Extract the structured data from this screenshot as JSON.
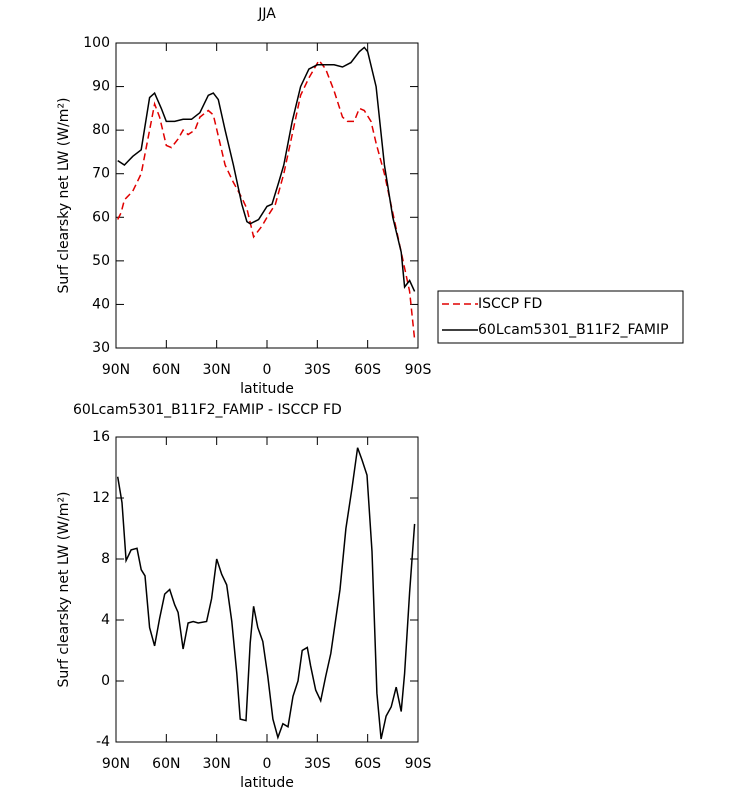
{
  "chart_data": [
    {
      "type": "line",
      "title": "JJA",
      "xlabel": "latitude",
      "ylabel": "Surf clearsky net LW (W/m²)",
      "xlim": [
        90,
        -90
      ],
      "xticks": [
        {
          "value": 90,
          "label": "90N"
        },
        {
          "value": 60,
          "label": "60N"
        },
        {
          "value": 30,
          "label": "30N"
        },
        0,
        {
          "value": -30,
          "label": "30S"
        },
        {
          "value": -60,
          "label": "60S"
        },
        {
          "value": -90,
          "label": "90S"
        }
      ],
      "ylim": [
        30,
        100
      ],
      "yticks": [
        30,
        40,
        50,
        60,
        70,
        80,
        90,
        100
      ],
      "legend": "right",
      "series": [
        {
          "name": "ISCCP FD",
          "color": "#e00000",
          "line_style": "dashed",
          "x": [
            89,
            87,
            85,
            80,
            75,
            70,
            67,
            64,
            60,
            57,
            53,
            50,
            47,
            43,
            40,
            35,
            32,
            28,
            25,
            20,
            15,
            12,
            8,
            5,
            3,
            0,
            -5,
            -10,
            -15,
            -20,
            -25,
            -31,
            -35,
            -40,
            -45,
            -48,
            -52,
            -55,
            -58,
            -62,
            -65,
            -70,
            -75,
            -80,
            -85,
            -88
          ],
          "values": [
            59.5,
            61,
            64,
            66,
            70,
            80,
            86,
            83,
            76.5,
            76,
            78,
            80,
            79,
            80,
            83,
            84.5,
            83.5,
            77,
            72,
            68,
            64.5,
            62,
            55.5,
            57,
            58,
            60,
            63,
            70,
            79,
            88,
            92,
            96,
            94,
            89,
            83,
            82,
            82,
            85,
            84.5,
            82,
            77,
            70,
            61,
            52,
            43,
            32
          ]
        },
        {
          "name": "60Lcam5301_B11F2_FAMIP",
          "color": "#000000",
          "line_style": "solid",
          "x": [
            89,
            85,
            80,
            75,
            70,
            67,
            63,
            60,
            55,
            50,
            45,
            40,
            35,
            32,
            29,
            25,
            20,
            15,
            12,
            10,
            5,
            0,
            -3,
            -7,
            -10,
            -15,
            -20,
            -25,
            -30,
            -35,
            -40,
            -45,
            -50,
            -55,
            -58,
            -60,
            -65,
            -70,
            -75,
            -80,
            -82,
            -85,
            -88
          ],
          "values": [
            73,
            72,
            74,
            75.5,
            87.5,
            88.5,
            85,
            82,
            82,
            82.5,
            82.5,
            84,
            88,
            88.5,
            87,
            80,
            72,
            63,
            59,
            58.5,
            59.5,
            62.5,
            63,
            68,
            72,
            82,
            90,
            94,
            95,
            95,
            95,
            94.5,
            95.5,
            98,
            99,
            98,
            90,
            72,
            60,
            52,
            44,
            45.5,
            43
          ]
        }
      ]
    },
    {
      "type": "line",
      "title": "60Lcam5301_B11F2_FAMIP - ISCCP FD",
      "xlabel": "latitude",
      "ylabel": "Surf clearsky net LW (W/m²)",
      "xlim": [
        90,
        -90
      ],
      "xticks": [
        {
          "value": 90,
          "label": "90N"
        },
        {
          "value": 60,
          "label": "60N"
        },
        {
          "value": 30,
          "label": "30N"
        },
        0,
        {
          "value": -30,
          "label": "30S"
        },
        {
          "value": -60,
          "label": "60S"
        },
        {
          "value": -90,
          "label": "90S"
        }
      ],
      "ylim": [
        -4,
        16
      ],
      "yticks": [
        -4,
        0,
        4,
        8,
        12,
        16
      ],
      "color": "#000000",
      "x": [
        89,
        86.4,
        84,
        81,
        77.5,
        75,
        72.7,
        70,
        67,
        64,
        61,
        58,
        55,
        53,
        50,
        47,
        44,
        41,
        36,
        33,
        30,
        27,
        24,
        21,
        18,
        16,
        12.5,
        10,
        8,
        5.5,
        2.5,
        -0.5,
        -3.5,
        -6.5,
        -9.5,
        -12.5,
        -15.5,
        -18.5,
        -21,
        -24,
        -26,
        -29,
        -32,
        -35,
        -38,
        -43.5,
        -47,
        -50.6,
        -54,
        -56.6,
        -59.6,
        -62.6,
        -65.5,
        -68,
        -71,
        -74,
        -77,
        -80,
        -82,
        -85,
        -88
      ],
      "values": [
        13.4,
        11.7,
        7.9,
        8.6,
        8.7,
        7.3,
        6.9,
        3.5,
        2.3,
        4.1,
        5.7,
        6.0,
        5.0,
        4.5,
        2.1,
        3.8,
        3.9,
        3.8,
        3.9,
        5.4,
        8.0,
        7.0,
        6.3,
        3.9,
        0.5,
        -2.5,
        -2.6,
        2.5,
        4.9,
        3.5,
        2.6,
        0.3,
        -2.5,
        -3.7,
        -2.8,
        -3.0,
        -1.0,
        0,
        2.0,
        2.2,
        1.0,
        -0.6,
        -1.3,
        0.3,
        1.8,
        6,
        10,
        12.6,
        15.3,
        14.5,
        13.5,
        8.5,
        -0.8,
        -3.8,
        -2.3,
        -1.7,
        -0.4,
        -2.0,
        0.5,
        5.8,
        10.3
      ]
    }
  ]
}
